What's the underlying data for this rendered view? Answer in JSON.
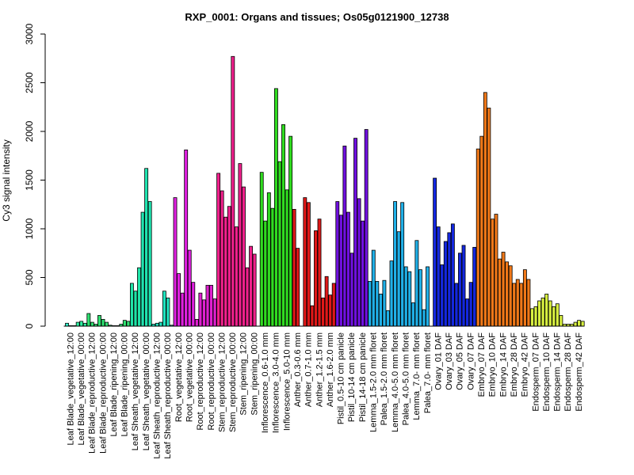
{
  "chart_data": {
    "type": "bar",
    "title": "RXP_0001: Organs and tissues; Os05g0121900_12738",
    "xlabel": "",
    "ylabel": "Cy3 signal intensity",
    "ylim": [
      0,
      3000
    ],
    "yticks": [
      0,
      500,
      1000,
      1500,
      2000,
      2500,
      3000
    ],
    "grid": false,
    "legend": "none",
    "bars_per_group": 3,
    "groups": [
      {
        "label": "Leaf Blade_vegetative_12:00",
        "color": "#2ef0c8",
        "values": [
          30,
          5,
          5
        ]
      },
      {
        "label": "Leaf Blade_vegetative_00:00",
        "color": "#2ef0a0",
        "values": [
          40,
          50,
          30
        ]
      },
      {
        "label": "Leaf Blade_reproductive_12:00",
        "color": "#2ee070",
        "values": [
          130,
          40,
          20
        ]
      },
      {
        "label": "Leaf Blade_reproductive_00:00",
        "color": "#2ee070",
        "values": [
          110,
          70,
          40
        ]
      },
      {
        "label": "Leaf Blade_ripening_12:00",
        "color": "#2ee070",
        "values": [
          10,
          5,
          5
        ]
      },
      {
        "label": "Leaf Blade_ripening_00:00",
        "color": "#2ee070",
        "values": [
          20,
          60,
          50
        ]
      },
      {
        "label": "Leaf Sheath_vegetative_12:00",
        "color": "#20e4a8",
        "values": [
          440,
          360,
          600
        ]
      },
      {
        "label": "Leaf Sheath_vegetative_00:00",
        "color": "#20e4b0",
        "values": [
          1170,
          1620,
          1280
        ]
      },
      {
        "label": "Leaf Sheath_reproductive_12:00",
        "color": "#20e4c0",
        "values": [
          20,
          30,
          40
        ]
      },
      {
        "label": "Leaf Sheath_reproductive_00:00",
        "color": "#20e4c0",
        "values": [
          360,
          290,
          10
        ]
      },
      {
        "label": "Root_vegetative_12:00",
        "color": "#e020e0",
        "values": [
          1320,
          540,
          340
        ]
      },
      {
        "label": "Root_vegetative_00:00",
        "color": "#e020e0",
        "values": [
          1810,
          780,
          450
        ]
      },
      {
        "label": "Root_reproductive_12:00",
        "color": "#e020d0",
        "values": [
          70,
          340,
          270
        ]
      },
      {
        "label": "Root_reproductive_00:00",
        "color": "#e020d0",
        "values": [
          420,
          420,
          280
        ]
      },
      {
        "label": "Stem_reproductive_12:00",
        "color": "#f0208c",
        "values": [
          1570,
          1390,
          1120
        ]
      },
      {
        "label": "Stem_reproductive_00:00",
        "color": "#f0208c",
        "values": [
          1230,
          2770,
          1020
        ]
      },
      {
        "label": "Stem_ripening_12:00",
        "color": "#f0208c",
        "values": [
          1670,
          1430,
          600
        ]
      },
      {
        "label": "Stem_ripening_00:00",
        "color": "#f0208c",
        "values": [
          820,
          740,
          0
        ]
      },
      {
        "label": "Inflorescence_0.6-1.0 mm",
        "color": "#30dc20",
        "values": [
          1580,
          1080,
          1370
        ]
      },
      {
        "label": "Inflorescence_3.0-4.0 mm",
        "color": "#30dc20",
        "values": [
          1210,
          2440,
          1690
        ]
      },
      {
        "label": "Inflorescence_5.0-10 mm",
        "color": "#30dc20",
        "values": [
          2070,
          1400,
          1950
        ]
      },
      {
        "label": "Anther_0.3-0.6 mm",
        "color": "#e01818",
        "values": [
          1200,
          800,
          0
        ]
      },
      {
        "label": "Anther_0.7-1.0 mm",
        "color": "#e01818",
        "values": [
          1320,
          1270,
          210
        ]
      },
      {
        "label": "Anther_1.2-1.5 mm",
        "color": "#e01818",
        "values": [
          980,
          1100,
          290
        ]
      },
      {
        "label": "Anther_1.6-2.0 mm",
        "color": "#e01818",
        "values": [
          510,
          320,
          440
        ]
      },
      {
        "label": "Pistil_0.5-10 cm panicle",
        "color": "#7010e0",
        "values": [
          1280,
          1140,
          1850
        ]
      },
      {
        "label": "Pistil_10-14 cm panicle",
        "color": "#7010e0",
        "values": [
          1170,
          750,
          1930
        ]
      },
      {
        "label": "Pistil_14-18 cm panicle",
        "color": "#7010e0",
        "values": [
          1310,
          1080,
          2020
        ]
      },
      {
        "label": "Lemma_1.5-2.0 mm floret",
        "color": "#20b0e8",
        "values": [
          460,
          780,
          460
        ]
      },
      {
        "label": "Palea_1.5-2.0 mm floret",
        "color": "#20b0e8",
        "values": [
          330,
          470,
          160
        ]
      },
      {
        "label": "Lemma_4.0-5.0 mm floret",
        "color": "#20b0e8",
        "values": [
          670,
          1280,
          970
        ]
      },
      {
        "label": "Palea_4.0-5.0 mm floret",
        "color": "#20b0e8",
        "values": [
          1270,
          610,
          560
        ]
      },
      {
        "label": "Lemma_7.0- mm floret",
        "color": "#20b0e8",
        "values": [
          240,
          880,
          580
        ]
      },
      {
        "label": "Palea_7.0- mm floret",
        "color": "#20b0e8",
        "values": [
          170,
          610,
          0
        ]
      },
      {
        "label": "Ovary_01 DAF",
        "color": "#1428e0",
        "values": [
          1520,
          1020,
          630
        ]
      },
      {
        "label": "Ovary_03 DAF",
        "color": "#1428e0",
        "values": [
          870,
          960,
          1050
        ]
      },
      {
        "label": "Ovary_05 DAF",
        "color": "#1428e0",
        "values": [
          440,
          750,
          830
        ]
      },
      {
        "label": "Ovary_07 DAF",
        "color": "#1428e0",
        "values": [
          280,
          450,
          810
        ]
      },
      {
        "label": "Embryo_07 DAF",
        "color": "#f07818",
        "values": [
          1820,
          1950,
          2400
        ]
      },
      {
        "label": "Embryo_10 DAF",
        "color": "#f07818",
        "values": [
          2240,
          1100,
          1150
        ]
      },
      {
        "label": "Embryo_14 DAF",
        "color": "#f07818",
        "values": [
          690,
          760,
          660
        ]
      },
      {
        "label": "Embryo_28 DAF",
        "color": "#f07818",
        "values": [
          620,
          440,
          480
        ]
      },
      {
        "label": "Embryo_42 DAF",
        "color": "#f07818",
        "values": [
          440,
          580,
          480
        ]
      },
      {
        "label": "Endosperm_07 DAF",
        "color": "#d8f040",
        "values": [
          180,
          200,
          260
        ]
      },
      {
        "label": "Endosperm_10 DAF",
        "color": "#d8f040",
        "values": [
          290,
          330,
          260
        ]
      },
      {
        "label": "Endosperm_14 DAF",
        "color": "#d8f040",
        "values": [
          200,
          230,
          110
        ]
      },
      {
        "label": "Endosperm_28 DAF",
        "color": "#d8f040",
        "values": [
          20,
          20,
          20
        ]
      },
      {
        "label": "Endosperm_42 DAF",
        "color": "#d8f040",
        "values": [
          40,
          60,
          50
        ]
      }
    ]
  }
}
